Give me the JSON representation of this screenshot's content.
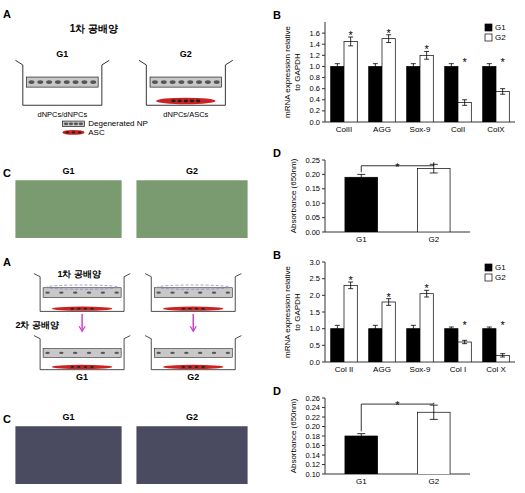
{
  "chart_data": [
    {
      "type": "diagram",
      "title": "1차 공배양",
      "annotations": [
        "A",
        "G1",
        "G2",
        "dNPCs/dNPCs",
        "dNPCs/ASCs",
        "Degenerated NP",
        "ASC"
      ]
    },
    {
      "type": "bar",
      "annotations": [
        "B",
        "*",
        "*",
        "*",
        "*",
        "*"
      ],
      "categories": [
        "ColII",
        "AGG",
        "Sox-9",
        "ColI",
        "ColX"
      ],
      "series": [
        {
          "name": "G1",
          "color": "#000000",
          "values": [
            1.0,
            1.0,
            1.0,
            1.0,
            1.0
          ],
          "errors": [
            0.05,
            0.05,
            0.05,
            0.05,
            0.05
          ]
        },
        {
          "name": "G2",
          "color": "#ffffff",
          "values": [
            1.45,
            1.5,
            1.2,
            0.35,
            0.55
          ],
          "errors": [
            0.08,
            0.07,
            0.07,
            0.05,
            0.05
          ]
        }
      ],
      "ylabel": "mRNA expression relative\nto GAPDH",
      "ylim": [
        0,
        1.8
      ],
      "yticks": [
        {
          "value": 0,
          "label": "0.0"
        },
        0.2,
        0.4,
        0.6,
        0.8,
        {
          "value": 1.0,
          "label": "1.0"
        },
        1.2,
        1.4,
        1.6
      ],
      "legend": "upper right"
    },
    {
      "type": "image",
      "annotations": [
        "C",
        "G1",
        "G2"
      ],
      "colors": [
        "#7a9a70",
        "#7a9a70"
      ]
    },
    {
      "type": "bar",
      "annotations": [
        "D",
        "*"
      ],
      "categories": [
        "G1",
        "G2"
      ],
      "values": [
        0.19,
        0.22
      ],
      "errors": [
        0.01,
        0.015
      ],
      "colors": [
        "black",
        "white"
      ],
      "ylabel": "Absorbance (650nm)",
      "ylim": [
        0,
        0.25
      ],
      "yticks": [
        {
          "value": 0,
          "label": "0.00"
        },
        0.05,
        {
          "value": 0.1,
          "label": "0.10"
        },
        0.15,
        {
          "value": 0.2,
          "label": "0.20"
        },
        0.25
      ]
    },
    {
      "type": "diagram",
      "annotations": [
        "A",
        "1차 공배양",
        "2차 공배양",
        "G1",
        "G2"
      ]
    },
    {
      "type": "bar",
      "annotations": [
        "B",
        "*",
        "*",
        "*",
        "*",
        "*"
      ],
      "categories": [
        "Col II",
        "AGG",
        "Sox-9",
        "Col I",
        "Col X"
      ],
      "series": [
        {
          "name": "G1",
          "color": "#000000",
          "values": [
            1.0,
            1.0,
            1.0,
            1.0,
            1.0
          ],
          "errors": [
            0.1,
            0.1,
            0.1,
            0.05,
            0.05
          ]
        },
        {
          "name": "G2",
          "color": "#ffffff",
          "values": [
            2.3,
            1.8,
            2.05,
            0.6,
            0.2
          ],
          "errors": [
            0.1,
            0.1,
            0.1,
            0.05,
            0.05
          ]
        }
      ],
      "ylabel": "mRNA expression relative\nto GAPDH",
      "ylim": [
        0,
        3.0
      ],
      "yticks": [
        {
          "value": 0,
          "label": "0.0"
        },
        0.5,
        {
          "value": 1.0,
          "label": "1.0"
        },
        1.5,
        {
          "value": 2.0,
          "label": "2.0"
        },
        2.5,
        {
          "value": 3.0,
          "label": "3.0"
        }
      ],
      "legend": "upper right"
    },
    {
      "type": "image",
      "annotations": [
        "C",
        "G1",
        "G2"
      ],
      "colors": [
        "#4a4a60",
        "#4a4a60"
      ]
    },
    {
      "type": "bar",
      "annotations": [
        "D",
        "*"
      ],
      "categories": [
        "G1",
        "G2"
      ],
      "values": [
        0.18,
        0.23
      ],
      "errors": [
        0.005,
        0.015
      ],
      "colors": [
        "black",
        "white"
      ],
      "ylabel": "Absorbance (650nm)",
      "ylim": [
        0.1,
        0.26
      ],
      "yticks": [
        {
          "value": 0.1,
          "label": "0.10"
        },
        0.12,
        0.14,
        0.16,
        0.18,
        {
          "value": 0.2,
          "label": "0.20"
        },
        0.22,
        0.24,
        0.26
      ]
    }
  ]
}
